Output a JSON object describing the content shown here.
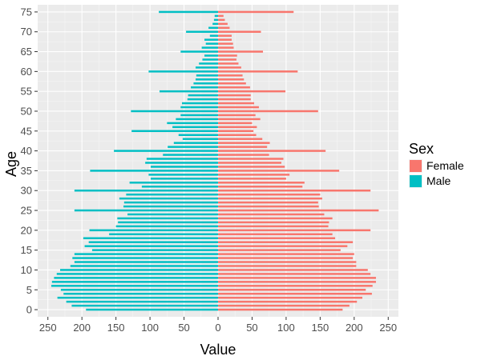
{
  "chart_data": {
    "type": "bar",
    "orientation": "horizontal",
    "title": "",
    "xlabel": "Value",
    "ylabel": "Age",
    "xlim": [
      -265,
      265
    ],
    "ylim": [
      -1.8,
      76.8
    ],
    "x_tick_values": [
      -250,
      -200,
      -150,
      -100,
      -50,
      0,
      50,
      100,
      150,
      200,
      250
    ],
    "x_tick_labels": [
      "250",
      "200",
      "150",
      "100",
      "50",
      "0",
      "50",
      "100",
      "150",
      "200",
      "250"
    ],
    "y_tick_values": [
      0,
      5,
      10,
      15,
      20,
      25,
      30,
      35,
      40,
      45,
      50,
      55,
      60,
      65,
      70,
      75
    ],
    "y_tick_labels": [
      "0",
      "5",
      "10",
      "15",
      "20",
      "25",
      "30",
      "35",
      "40",
      "45",
      "50",
      "55",
      "60",
      "65",
      "70",
      "75"
    ],
    "grid": true,
    "legend": {
      "title": "Sex",
      "position": "right"
    },
    "categories": [
      0,
      1,
      2,
      3,
      4,
      5,
      6,
      7,
      8,
      9,
      10,
      11,
      12,
      13,
      14,
      15,
      16,
      17,
      18,
      19,
      20,
      21,
      22,
      23,
      24,
      25,
      26,
      27,
      28,
      29,
      30,
      31,
      32,
      33,
      34,
      35,
      36,
      37,
      38,
      39,
      40,
      41,
      42,
      43,
      44,
      45,
      46,
      47,
      48,
      49,
      50,
      51,
      52,
      53,
      54,
      55,
      56,
      57,
      58,
      59,
      60,
      61,
      62,
      63,
      64,
      65,
      66,
      67,
      68,
      69,
      70,
      71,
      72,
      73,
      74,
      75
    ],
    "series": [
      {
        "name": "Female",
        "color": "#f8766d",
        "direction": "right",
        "values": [
          183,
          193,
          204,
          212,
          226,
          217,
          227,
          232,
          232,
          224,
          220,
          203,
          203,
          198,
          200,
          180,
          190,
          198,
          172,
          168,
          224,
          162,
          163,
          168,
          156,
          236,
          148,
          147,
          153,
          150,
          224,
          124,
          127,
          100,
          105,
          178,
          98,
          93,
          96,
          75,
          158,
          72,
          76,
          65,
          56,
          52,
          57,
          50,
          62,
          55,
          147,
          60,
          53,
          48,
          48,
          99,
          47,
          41,
          38,
          36,
          117,
          34,
          30,
          27,
          28,
          66,
          23,
          22,
          20,
          20,
          63,
          17,
          14,
          10,
          8,
          111
        ]
      },
      {
        "name": "Male",
        "color": "#00bfc4",
        "direction": "left",
        "values": [
          194,
          215,
          223,
          236,
          227,
          231,
          245,
          244,
          241,
          237,
          232,
          217,
          211,
          214,
          211,
          185,
          196,
          190,
          198,
          160,
          189,
          150,
          147,
          148,
          133,
          211,
          139,
          138,
          145,
          135,
          211,
          112,
          130,
          99,
          102,
          188,
          99,
          107,
          105,
          81,
          153,
          74,
          65,
          52,
          58,
          127,
          67,
          75,
          62,
          55,
          128,
          55,
          53,
          45,
          44,
          86,
          40,
          36,
          33,
          32,
          102,
          33,
          28,
          23,
          20,
          55,
          24,
          18,
          20,
          12,
          47,
          14,
          8,
          6,
          5,
          87
        ]
      }
    ]
  }
}
